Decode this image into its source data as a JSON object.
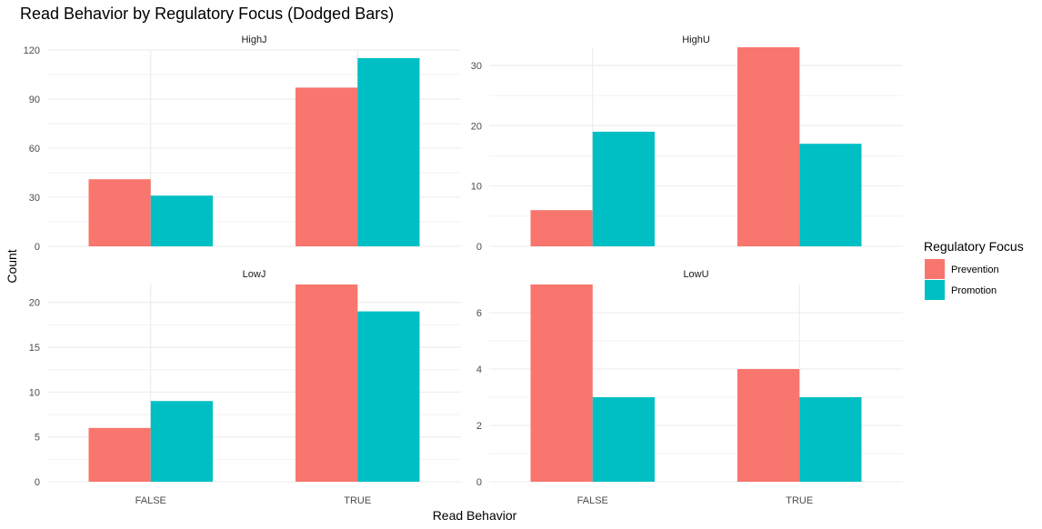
{
  "chart_data": {
    "type": "bar",
    "title": "Read Behavior by Regulatory Focus (Dodged Bars)",
    "xlabel": "Read Behavior",
    "ylabel": "Count",
    "categories": [
      "FALSE",
      "TRUE"
    ],
    "legend": {
      "title": "Regulatory Focus",
      "position": "right",
      "entries": [
        {
          "name": "Prevention",
          "color": "#F8766D"
        },
        {
          "name": "Promotion",
          "color": "#00BFC4"
        }
      ]
    },
    "grid": true,
    "facets": [
      {
        "label": "HighJ",
        "ylim": [
          0,
          120
        ],
        "yticks": [
          0,
          30,
          60,
          90,
          120
        ],
        "series": [
          {
            "name": "Prevention",
            "values": [
              41,
              97
            ]
          },
          {
            "name": "Promotion",
            "values": [
              31,
              115
            ]
          }
        ]
      },
      {
        "label": "HighU",
        "ylim": [
          0,
          33
        ],
        "yticks": [
          0,
          10,
          20,
          30
        ],
        "series": [
          {
            "name": "Prevention",
            "values": [
              6,
              33
            ]
          },
          {
            "name": "Promotion",
            "values": [
              19,
              17
            ]
          }
        ]
      },
      {
        "label": "LowJ",
        "ylim": [
          0,
          22
        ],
        "yticks": [
          0,
          5,
          10,
          15,
          20
        ],
        "series": [
          {
            "name": "Prevention",
            "values": [
              6,
              22
            ]
          },
          {
            "name": "Promotion",
            "values": [
              9,
              19
            ]
          }
        ]
      },
      {
        "label": "LowU",
        "ylim": [
          0,
          7
        ],
        "yticks": [
          0,
          2,
          4,
          6
        ],
        "series": [
          {
            "name": "Prevention",
            "values": [
              7,
              4
            ]
          },
          {
            "name": "Promotion",
            "values": [
              3,
              3
            ]
          }
        ]
      }
    ]
  }
}
